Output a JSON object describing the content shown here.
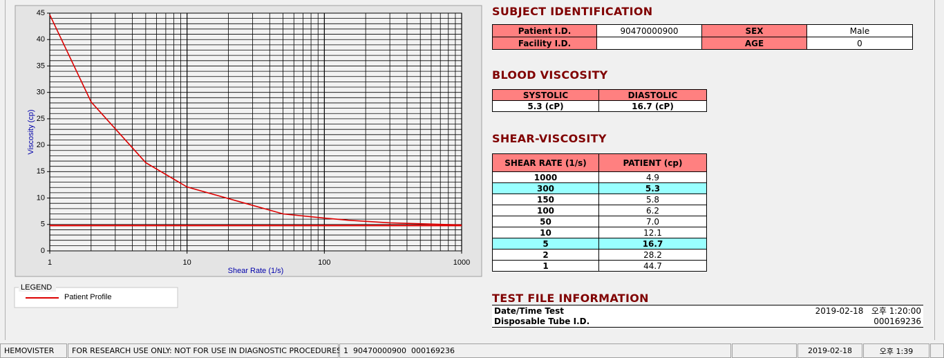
{
  "chart_data": {
    "type": "line",
    "xlabel": "Shear Rate (1/s)",
    "ylabel": "Viscosity (cp)",
    "xscale": "log",
    "xlim": [
      1,
      1000
    ],
    "xticks": [
      1,
      10,
      100,
      1000
    ],
    "ylim": [
      0,
      45
    ],
    "yticks": [
      0,
      5,
      10,
      15,
      20,
      25,
      30,
      35,
      40,
      45
    ],
    "grid": true,
    "minor_grid": true,
    "series": [
      {
        "name": "Patient Profile",
        "color": "#dd0000",
        "x": [
          1,
          2,
          5,
          10,
          50,
          100,
          150,
          300,
          1000
        ],
        "values": [
          44.7,
          28.2,
          16.7,
          12.1,
          7.0,
          6.2,
          5.8,
          5.3,
          4.9
        ]
      },
      {
        "color": "#dd0000",
        "x": [
          1,
          1000
        ],
        "values": [
          4.8,
          4.8
        ]
      }
    ]
  },
  "legend_title": "LEGEND",
  "subject": {
    "title": "SUBJECT IDENTIFICATION",
    "rows": [
      [
        "Patient I.D.",
        "90470000900",
        "SEX",
        "Male"
      ],
      [
        "Facility I.D.",
        null,
        "AGE",
        "0"
      ]
    ]
  },
  "blood_viscosity": {
    "title": "BLOOD VISCOSITY",
    "headers": [
      "SYSTOLIC",
      "DIASTOLIC"
    ],
    "values": [
      "5.3 (cP)",
      "16.7 (cP)"
    ]
  },
  "shear_viscosity": {
    "title": "SHEAR-VISCOSITY",
    "headers": [
      "SHEAR RATE (1/s)",
      "PATIENT (cp)"
    ],
    "rows": [
      [
        "1000",
        "4.9"
      ],
      [
        "300",
        "5.3"
      ],
      [
        "150",
        "5.8"
      ],
      [
        "100",
        "6.2"
      ],
      [
        "50",
        "7.0"
      ],
      [
        "10",
        "12.1"
      ],
      [
        "5",
        "16.7"
      ],
      [
        "2",
        "28.2"
      ],
      [
        "1",
        "44.7"
      ]
    ],
    "highlight_rows": [
      1,
      6
    ]
  },
  "test_file": {
    "title": "TEST FILE INFORMATION",
    "rows": [
      [
        "Date/Time Test",
        "2019-02-18   오후 1:20:00"
      ],
      [
        "Disposable Tube I.D.",
        "000169236"
      ]
    ]
  },
  "status_bar": [
    "HEMOVISTER",
    "FOR RESEARCH USE ONLY: NOT FOR USE IN DIAGNOSTIC PROCEDURES",
    "1  90470000900  000169236",
    "2019-02-18",
    "오후 1:39"
  ]
}
